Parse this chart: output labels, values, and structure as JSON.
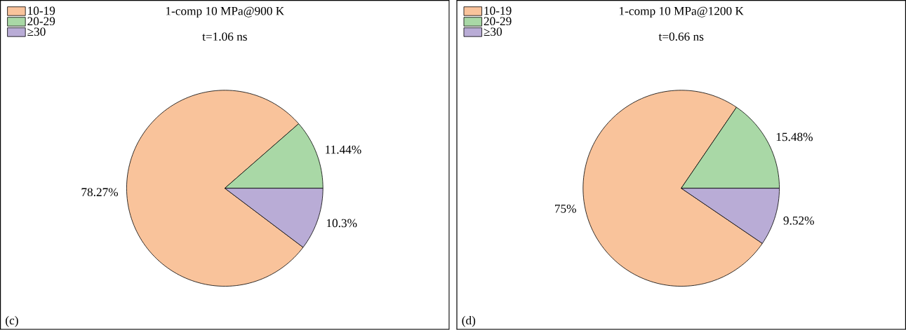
{
  "chart_data": [
    {
      "type": "pie",
      "title": "1-comp 10 MPa@900 K",
      "subtitle": "t=1.06 ns",
      "categories": [
        "10-19",
        "20-29",
        "≥30"
      ],
      "values": [
        78.27,
        11.44,
        10.3
      ],
      "colors": [
        "#f9c39b",
        "#a9d8a6",
        "#b9acd6"
      ],
      "value_labels": [
        "78.27%",
        "11.44%",
        "10.3%"
      ],
      "legend": "top left",
      "annotations": [
        "(c)"
      ]
    },
    {
      "type": "pie",
      "title": "1-comp 10 MPa@1200 K",
      "subtitle": "t=0.66 ns",
      "categories": [
        "10-19",
        "20-29",
        "≥30"
      ],
      "values": [
        75,
        15.48,
        9.52
      ],
      "colors": [
        "#f9c39b",
        "#a9d8a6",
        "#b9acd6"
      ],
      "value_labels": [
        "75%",
        "15.48%",
        "9.52%"
      ],
      "legend": "top left",
      "annotations": [
        "(d)"
      ]
    }
  ]
}
